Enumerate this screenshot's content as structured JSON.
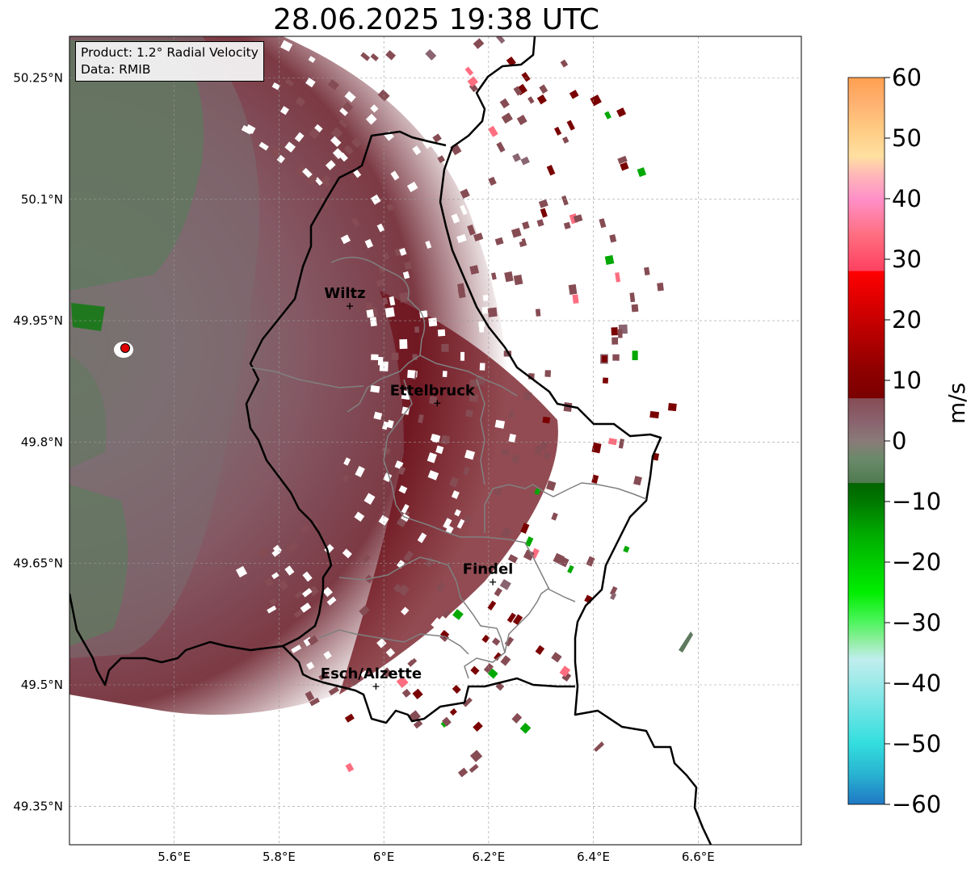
{
  "title": "28.06.2025 19:38 UTC",
  "info": {
    "product": "Product: 1.2° Radial Velocity",
    "source": "Data: RMIB"
  },
  "axes": {
    "lon_range": [
      5.4,
      6.8
    ],
    "lat_range": [
      49.3,
      50.3
    ],
    "lon_ticks": [
      {
        "value": 5.6,
        "label": "5.6°E"
      },
      {
        "value": 5.8,
        "label": "5.8°E"
      },
      {
        "value": 6.0,
        "label": "6°E"
      },
      {
        "value": 6.2,
        "label": "6.2°E"
      },
      {
        "value": 6.4,
        "label": "6.4°E"
      },
      {
        "value": 6.6,
        "label": "6.6°E"
      }
    ],
    "lat_ticks": [
      {
        "value": 50.25,
        "label": "50.25°N"
      },
      {
        "value": 50.1,
        "label": "50.1°N"
      },
      {
        "value": 49.95,
        "label": "49.95°N"
      },
      {
        "value": 49.8,
        "label": "49.8°N"
      },
      {
        "value": 49.65,
        "label": "49.65°N"
      },
      {
        "value": 49.5,
        "label": "49.5°N"
      },
      {
        "value": 49.35,
        "label": "49.35°N"
      }
    ],
    "grid": true
  },
  "radar_site": {
    "lon": 5.505,
    "lat": 49.915,
    "color": "#e00000"
  },
  "cities": [
    {
      "name": "Wiltz",
      "lon": 5.935,
      "lat": 49.968
    },
    {
      "name": "Ettelbruck",
      "lon": 6.102,
      "lat": 49.848
    },
    {
      "name": "Findel",
      "lon": 6.208,
      "lat": 49.627
    },
    {
      "name": "Esch/Alzette",
      "lon": 5.985,
      "lat": 49.498
    }
  ],
  "colorbar": {
    "label": "m/s",
    "min": -60,
    "max": 60,
    "ticks": [
      {
        "value": 60,
        "label": "60"
      },
      {
        "value": 50,
        "label": "50"
      },
      {
        "value": 40,
        "label": "40"
      },
      {
        "value": 30,
        "label": "30"
      },
      {
        "value": 20,
        "label": "20"
      },
      {
        "value": 10,
        "label": "10"
      },
      {
        "value": 0,
        "label": "0"
      },
      {
        "value": -10,
        "label": "−10"
      },
      {
        "value": -20,
        "label": "−20"
      },
      {
        "value": -30,
        "label": "−30"
      },
      {
        "value": -40,
        "label": "−40"
      },
      {
        "value": -50,
        "label": "−50"
      },
      {
        "value": -60,
        "label": "−60"
      }
    ],
    "stops": [
      {
        "value": -60,
        "color": "#1f78c4"
      },
      {
        "value": -55,
        "color": "#29b3d1"
      },
      {
        "value": -50,
        "color": "#33dede"
      },
      {
        "value": -45,
        "color": "#66e4e4"
      },
      {
        "value": -40,
        "color": "#9ce9e9"
      },
      {
        "value": -36,
        "color": "#c0eeee"
      },
      {
        "value": -33,
        "color": "#90eea0"
      },
      {
        "value": -30,
        "color": "#50f560"
      },
      {
        "value": -25,
        "color": "#00ee00"
      },
      {
        "value": -20,
        "color": "#00cc00"
      },
      {
        "value": -15,
        "color": "#00a800"
      },
      {
        "value": -10,
        "color": "#007800"
      },
      {
        "value": -7,
        "color": "#006400"
      },
      {
        "value": -6.9,
        "color": "#4f7a50"
      },
      {
        "value": -3,
        "color": "#6a8a6a"
      },
      {
        "value": 0,
        "color": "#8a7a78"
      },
      {
        "value": 3,
        "color": "#8a6470"
      },
      {
        "value": 7,
        "color": "#864c54"
      },
      {
        "value": 7.1,
        "color": "#7a0000"
      },
      {
        "value": 12,
        "color": "#900000"
      },
      {
        "value": 20,
        "color": "#c80000"
      },
      {
        "value": 28,
        "color": "#ff0000"
      },
      {
        "value": 28.1,
        "color": "#ff4060"
      },
      {
        "value": 34,
        "color": "#ff6e80"
      },
      {
        "value": 40,
        "color": "#ff90c8"
      },
      {
        "value": 44,
        "color": "#ffb8b8"
      },
      {
        "value": 47,
        "color": "#ffe0a0"
      },
      {
        "value": 52,
        "color": "#ffc880"
      },
      {
        "value": 56,
        "color": "#ffb070"
      },
      {
        "value": 60,
        "color": "#ffa050"
      }
    ]
  }
}
